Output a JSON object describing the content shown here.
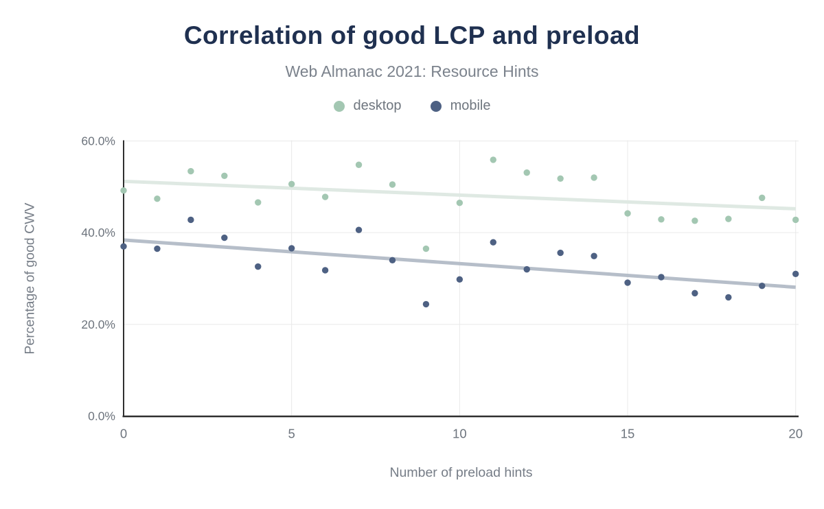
{
  "header": {
    "title": "Correlation of good LCP and preload",
    "subtitle": "Web Almanac 2021: Resource Hints"
  },
  "legend": {
    "items": [
      {
        "label": "desktop",
        "color": "#a3c7b2"
      },
      {
        "label": "mobile",
        "color": "#4e6183"
      }
    ]
  },
  "chart_data": {
    "type": "scatter",
    "title": "Correlation of good LCP and preload",
    "subtitle": "Web Almanac 2021: Resource Hints",
    "xlabel": "Number of preload hints",
    "ylabel": "Percentage of good CWV",
    "xlim": [
      0,
      20
    ],
    "ylim": [
      0,
      60
    ],
    "x_ticks": [
      0,
      5,
      10,
      15,
      20
    ],
    "y_ticks": [
      0,
      20,
      40,
      60
    ],
    "y_tick_suffix": "%",
    "grid": true,
    "legend_position": "top",
    "x": [
      0,
      1,
      2,
      3,
      4,
      5,
      6,
      7,
      8,
      9,
      10,
      11,
      12,
      13,
      14,
      15,
      16,
      17,
      18,
      19,
      20
    ],
    "series": [
      {
        "name": "desktop",
        "color": "#a3c7b2",
        "values": [
          49.2,
          47.4,
          53.4,
          52.4,
          46.6,
          50.6,
          47.8,
          54.8,
          50.5,
          36.5,
          46.5,
          55.9,
          53.1,
          51.8,
          52.0,
          44.2,
          42.9,
          42.6,
          43.0,
          47.6,
          42.8
        ],
        "trendline": {
          "x_start": 0,
          "y_start": 51.2,
          "x_end": 20,
          "y_end": 45.2,
          "color": "#dfe9e3"
        }
      },
      {
        "name": "mobile",
        "color": "#4e6183",
        "values": [
          37.0,
          36.5,
          42.8,
          38.9,
          32.6,
          36.6,
          31.8,
          40.6,
          34.0,
          24.4,
          29.8,
          37.9,
          32.0,
          35.6,
          34.9,
          29.1,
          30.3,
          26.8,
          25.9,
          28.4,
          31.0
        ],
        "trendline": {
          "x_start": 0,
          "y_start": 38.4,
          "x_end": 20,
          "y_end": 28.1,
          "color": "#b6bec9"
        }
      }
    ]
  },
  "colors": {
    "title": "#1f3050",
    "subtitle": "#7b828c",
    "legend_text": "#6f767f",
    "tick_labels": "#6d747d",
    "axis_titles": "#767d87",
    "axis_line": "#2f2f2f",
    "gridline": "#e9e9e9",
    "background": "#ffffff"
  }
}
